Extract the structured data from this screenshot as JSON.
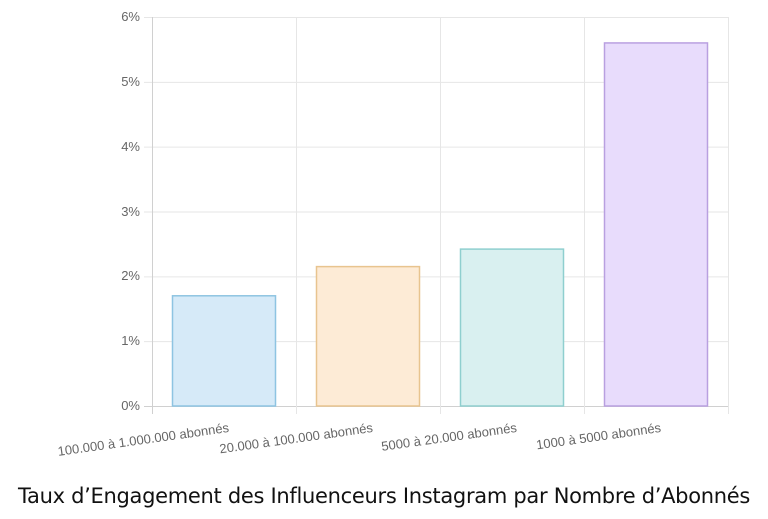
{
  "chart_data": {
    "type": "bar",
    "title": "Taux d’Engagement des Influenceurs Instagram par Nombre d’Abonnés",
    "xlabel": "",
    "ylabel": "",
    "categories": [
      "100.000 à 1.000.000 abonnés",
      "20.000 à 100.000 abonnés",
      "5000 à 20.000 abonnés",
      "1000 à 5000 abonnés"
    ],
    "values": [
      1.7,
      2.15,
      2.42,
      5.6
    ],
    "unit": "%",
    "ylim": [
      0,
      6
    ],
    "yticks": [
      "0%",
      "1%",
      "2%",
      "3%",
      "4%",
      "5%",
      "6%"
    ],
    "grid": true,
    "legend": "none",
    "colors": {
      "fills": [
        "#d6eaf8",
        "#fdebd6",
        "#d9f0f0",
        "#e8dcfc"
      ],
      "borders": [
        "#8ec4e2",
        "#e8c48f",
        "#8fcfcf",
        "#b9a0e0"
      ]
    }
  },
  "title": "Taux d’Engagement des Influenceurs Instagram par Nombre d’Abonnés"
}
